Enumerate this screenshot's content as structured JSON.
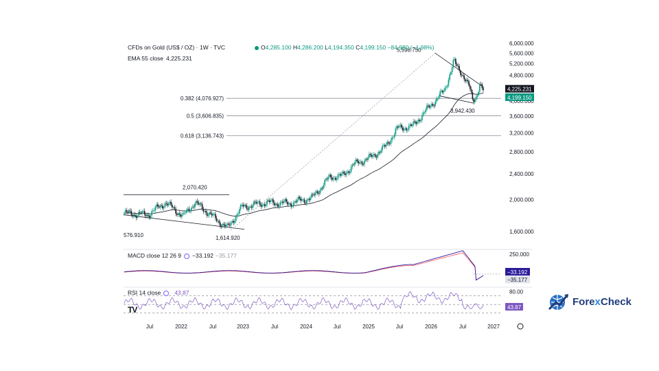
{
  "header": {
    "symbol": "CFDs on Gold (US$ / OZ) · 1W · TVC",
    "o_label": "O",
    "o_value": "4,285.100",
    "h_label": "H",
    "h_value": "4,286.200",
    "l_label": "L",
    "l_value": "4,194.350",
    "c_label": "C",
    "c_value": "4,199.150",
    "change": "−84.980 (−1.98%)",
    "ema_label": "EMA 55 close",
    "ema_value": "4,225.231"
  },
  "macd": {
    "label": "MACD close 12 26 9",
    "macd_value": "−33.192",
    "signal_value": "−35.177"
  },
  "rsi": {
    "label": "RSI 14 close",
    "value": "43.87"
  },
  "logo": {
    "text_a": "Fore",
    "text_x": "x",
    "text_b": "Check",
    "icon": "globe-chart-icon"
  },
  "colors": {
    "up": "#089981",
    "down": "#131722",
    "ema": "#131722",
    "macd_line": "#2a1b9a",
    "signal_line": "#f23645",
    "rsi_line": "#7e57c2",
    "accent": "#7b61ff"
  },
  "chart_data": {
    "type": "candlestick",
    "price_axis": {
      "min": 1600,
      "max": 6000,
      "ticks": [
        "6,000.000",
        "5,600.000",
        "5,200.000",
        "4,800.000",
        "4,400.000",
        "4,000.000",
        "3,600.000",
        "3,200.000",
        "2,800.000",
        "2,400.000",
        "2,000.000",
        "1,600.000"
      ],
      "tick_values": [
        6000,
        5600,
        5200,
        4800,
        4400,
        4000,
        3600,
        3200,
        2800,
        2400,
        2000,
        1600
      ]
    },
    "time_axis": {
      "labels": [
        "Jul",
        "2022",
        "Jul",
        "2023",
        "Jul",
        "2024",
        "Jul",
        "2025",
        "Jul",
        "2026",
        "Jul",
        "2027"
      ]
    },
    "price_labels": [
      {
        "text": "4,225.231",
        "value": 4225.231,
        "role": "ema"
      },
      {
        "text": "4,199.150",
        "value": 4199.15,
        "role": "close"
      }
    ],
    "fib_levels": [
      {
        "label": "0.382 (4,076.927)",
        "value": 4076.927
      },
      {
        "label": "0.5 (3,606.835)",
        "value": 3606.835
      },
      {
        "label": "0.618 (3,136.743)",
        "value": 3136.743
      }
    ],
    "annotations": [
      {
        "text": "5,598.750",
        "value": 5598.75
      },
      {
        "text": "3,942.430",
        "value": 3942.43
      },
      {
        "text": "2,070.420",
        "value": 2070.42
      },
      {
        "text": "1,614.920",
        "value": 1614.92
      },
      {
        "text": "576.910"
      }
    ],
    "macd_axis": {
      "ticks": [
        "250.000"
      ],
      "tick_values": [
        250
      ],
      "min": -200,
      "max": 320
    },
    "macd_labels": [
      {
        "text": "−33.192",
        "value": -33.192
      },
      {
        "text": "−35.177",
        "value": -35.177
      }
    ],
    "rsi_axis": {
      "ticks": [
        "80.00"
      ],
      "min": 20,
      "max": 90,
      "bands": [
        70,
        50,
        30
      ]
    },
    "rsi_labels": [
      {
        "text": "43.87",
        "value": 43.87
      }
    ]
  }
}
